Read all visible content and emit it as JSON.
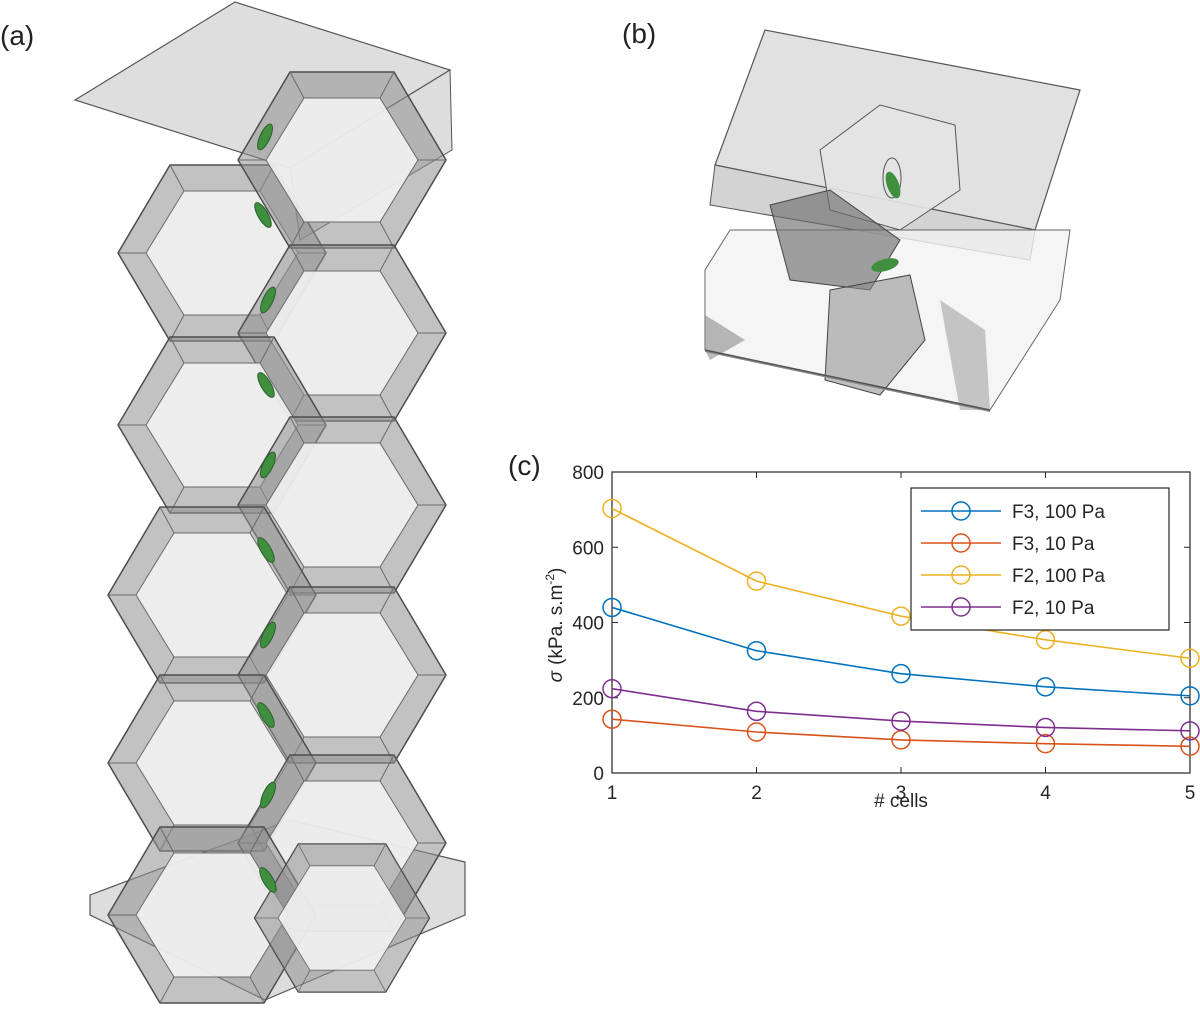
{
  "panels": {
    "a": "(a)",
    "b": "(b)",
    "c": "(c)"
  },
  "colors": {
    "F3_100": "#0072BD",
    "F3_10": "#D95319",
    "F2_100": "#EDB120",
    "F2_10": "#7E2F8E",
    "cell_face": "#9a9a9a",
    "cell_edge": "#555555",
    "membrane": "#3f8f3f"
  },
  "chart_data": {
    "type": "line",
    "xlabel": "# cells",
    "ylabel_symbol": "σ",
    "ylabel": "(kPa. s.m",
    "ylabel_sup": "-2",
    "ylabel_end": ")",
    "x": [
      1,
      2,
      3,
      4,
      5
    ],
    "xticks": [
      "1",
      "2",
      "3",
      "4",
      "5"
    ],
    "yticks": [
      "0",
      "200",
      "400",
      "600",
      "800"
    ],
    "xlim": [
      1,
      5
    ],
    "ylim": [
      0,
      800
    ],
    "grid": false,
    "legend_position": "top-right",
    "marker": "circle",
    "series": [
      {
        "name": "F3, 100 Pa",
        "color": "#0072BD",
        "values": [
          440,
          325,
          264,
          229,
          205
        ]
      },
      {
        "name": "F3, 10 Pa",
        "color": "#D95319",
        "values": [
          143,
          109,
          88,
          78,
          71
        ]
      },
      {
        "name": "F2, 100 Pa",
        "color": "#EDB120",
        "values": [
          703,
          510,
          417,
          354,
          305
        ]
      },
      {
        "name": "F2, 10 Pa",
        "color": "#7E2F8E",
        "values": [
          224,
          164,
          138,
          121,
          112
        ]
      }
    ]
  }
}
